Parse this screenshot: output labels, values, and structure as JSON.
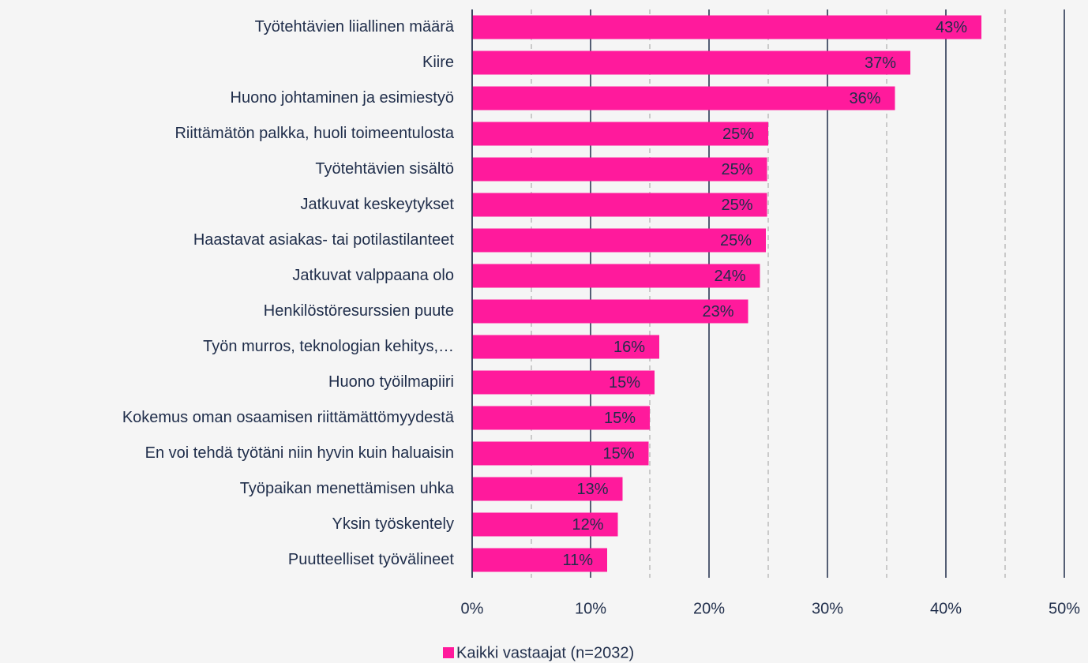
{
  "chart_data": {
    "type": "barh",
    "categories": [
      "Työtehtävien liiallinen määrä",
      "Kiire",
      "Huono johtaminen ja esimiestyö",
      "Riittämätön palkka, huoli toimeentulosta",
      "Työtehtävien sisältö",
      "Jatkuvat keskeytykset",
      "Haastavat asiakas- tai potilastilanteet",
      "Jatkuvat valppaana olo",
      "Henkilöstöresurssien puute",
      "Työn murros, teknologian kehitys,…",
      "Huono työilmapiiri",
      "Kokemus oman osaamisen riittämättömyydestä",
      "En voi tehdä työtäni niin hyvin kuin haluaisin",
      "Työpaikan menettämisen uhka",
      "Yksin työskentely",
      "Puutteelliset työvälineet"
    ],
    "series": [
      {
        "name": "Kaikki vastaajat (n=2032)",
        "color": "#ff1a9c",
        "values": [
          43.0,
          37.0,
          35.7,
          25.0,
          24.9,
          24.9,
          24.8,
          24.3,
          23.3,
          15.8,
          15.4,
          15.0,
          14.9,
          12.7,
          12.3,
          11.4
        ],
        "value_labels": [
          "43%",
          "37%",
          "36%",
          "25%",
          "25%",
          "25%",
          "25%",
          "24%",
          "23%",
          "16%",
          "15%",
          "15%",
          "15%",
          "13%",
          "12%",
          "11%"
        ]
      }
    ],
    "xlim": [
      0,
      50
    ],
    "xticks": [
      {
        "value": 0,
        "label": "0%"
      },
      {
        "value": 10,
        "label": "10%"
      },
      {
        "value": 20,
        "label": "20%"
      },
      {
        "value": 30,
        "label": "30%"
      },
      {
        "value": 40,
        "label": "40%"
      },
      {
        "value": 50,
        "label": "50%"
      }
    ],
    "minor_xticks": [
      5,
      15,
      25,
      35,
      45
    ],
    "grid": true,
    "legend": "bottom"
  }
}
